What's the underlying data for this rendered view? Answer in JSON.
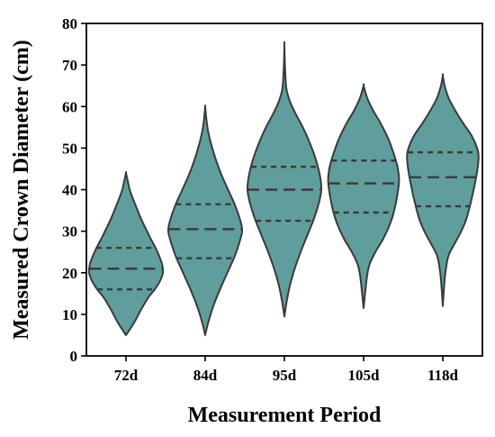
{
  "chart_data": {
    "type": "violin",
    "xlabel": "Measurement Period",
    "ylabel": "Measured Crown Diameter (cm)",
    "ylim": [
      0,
      80
    ],
    "yticks": [
      0,
      10,
      20,
      30,
      40,
      50,
      60,
      70,
      80
    ],
    "grid": false,
    "legend": "none",
    "categories": [
      "72d",
      "84d",
      "95d",
      "105d",
      "118d"
    ],
    "series": [
      {
        "category": "72d",
        "min": 5,
        "max": 44,
        "q1": 16,
        "median": 21,
        "q3": 26,
        "density": [
          [
            5,
            0.0
          ],
          [
            8,
            0.22
          ],
          [
            11,
            0.4
          ],
          [
            14,
            0.6
          ],
          [
            16,
            0.78
          ],
          [
            18,
            0.92
          ],
          [
            20,
            1.0
          ],
          [
            22,
            0.98
          ],
          [
            24,
            0.9
          ],
          [
            26,
            0.8
          ],
          [
            28,
            0.68
          ],
          [
            30,
            0.57
          ],
          [
            32,
            0.46
          ],
          [
            34,
            0.36
          ],
          [
            36,
            0.27
          ],
          [
            38,
            0.18
          ],
          [
            40,
            0.1
          ],
          [
            42,
            0.05
          ],
          [
            44,
            0.0
          ]
        ]
      },
      {
        "category": "84d",
        "min": 5,
        "max": 60,
        "q1": 23.5,
        "median": 30.5,
        "q3": 36.5,
        "density": [
          [
            5,
            0.0
          ],
          [
            8,
            0.08
          ],
          [
            12,
            0.22
          ],
          [
            16,
            0.4
          ],
          [
            20,
            0.6
          ],
          [
            24,
            0.8
          ],
          [
            28,
            0.95
          ],
          [
            30,
            1.0
          ],
          [
            32,
            0.97
          ],
          [
            36,
            0.82
          ],
          [
            40,
            0.62
          ],
          [
            44,
            0.42
          ],
          [
            48,
            0.26
          ],
          [
            52,
            0.13
          ],
          [
            55,
            0.06
          ],
          [
            58,
            0.02
          ],
          [
            60,
            0.0
          ]
        ]
      },
      {
        "category": "95d",
        "min": 9.5,
        "max": 75,
        "q1": 32.5,
        "median": 40,
        "q3": 45.5,
        "density": [
          [
            9.5,
            0.0
          ],
          [
            13,
            0.06
          ],
          [
            17,
            0.15
          ],
          [
            21,
            0.28
          ],
          [
            25,
            0.44
          ],
          [
            29,
            0.62
          ],
          [
            33,
            0.8
          ],
          [
            37,
            0.94
          ],
          [
            40,
            1.0
          ],
          [
            43,
            0.97
          ],
          [
            47,
            0.86
          ],
          [
            51,
            0.7
          ],
          [
            55,
            0.5
          ],
          [
            58,
            0.32
          ],
          [
            61,
            0.16
          ],
          [
            64,
            0.06
          ],
          [
            67,
            0.03
          ],
          [
            71,
            0.01
          ],
          [
            75,
            0.0
          ]
        ]
      },
      {
        "category": "105d",
        "min": 11.5,
        "max": 65,
        "q1": 34.5,
        "median": 41.5,
        "q3": 47,
        "density": [
          [
            11.5,
            0.0
          ],
          [
            15,
            0.04
          ],
          [
            19,
            0.09
          ],
          [
            22,
            0.16
          ],
          [
            25,
            0.32
          ],
          [
            28,
            0.52
          ],
          [
            31,
            0.68
          ],
          [
            34,
            0.8
          ],
          [
            38,
            0.9
          ],
          [
            42,
            0.96
          ],
          [
            45,
            0.93
          ],
          [
            48,
            0.84
          ],
          [
            52,
            0.68
          ],
          [
            56,
            0.46
          ],
          [
            59,
            0.26
          ],
          [
            62,
            0.1
          ],
          [
            65,
            0.0
          ]
        ]
      },
      {
        "category": "118d",
        "min": 12,
        "max": 67.5,
        "q1": 36,
        "median": 43,
        "q3": 49,
        "density": [
          [
            12,
            0.0
          ],
          [
            16,
            0.03
          ],
          [
            20,
            0.07
          ],
          [
            24,
            0.15
          ],
          [
            27,
            0.32
          ],
          [
            30,
            0.5
          ],
          [
            33,
            0.64
          ],
          [
            37,
            0.76
          ],
          [
            41,
            0.86
          ],
          [
            45,
            0.94
          ],
          [
            48,
            0.97
          ],
          [
            50,
            0.93
          ],
          [
            53,
            0.78
          ],
          [
            56,
            0.55
          ],
          [
            59,
            0.34
          ],
          [
            62,
            0.16
          ],
          [
            65,
            0.05
          ],
          [
            67.5,
            0.0
          ]
        ]
      }
    ]
  }
}
